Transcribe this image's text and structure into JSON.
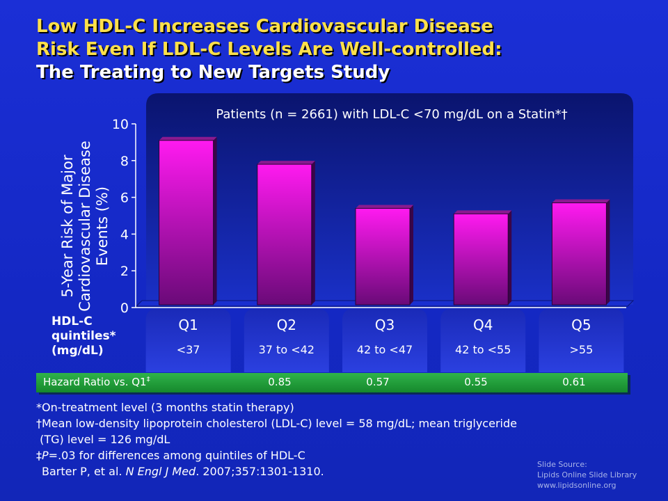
{
  "title": {
    "line1": "Low HDL-C Increases Cardiovascular Disease",
    "line2": "Risk Even If LDL-C Levels Are Well-controlled:",
    "line3": "The Treating to New Targets Study"
  },
  "chart_data": {
    "type": "bar",
    "subtitle": "Patients (n = 2661) with LDL-C <70 mg/dL on  a Statin*†",
    "ylabel": "5-Year Risk of Major Cardiovascular Disease Events (%)",
    "ylabel_lines": [
      "5-Year Risk of Major",
      "Cardiovascular Disease",
      "Events (%)"
    ],
    "ylim": [
      0,
      10
    ],
    "yticks": [
      0,
      2,
      4,
      6,
      8,
      10
    ],
    "categories": [
      "Q1",
      "Q2",
      "Q3",
      "Q4",
      "Q5"
    ],
    "ranges": [
      "<37",
      "37 to <42",
      "42 to <47",
      "42 to <55",
      ">55"
    ],
    "values": [
      9.1,
      7.8,
      5.4,
      5.1,
      5.7
    ],
    "xlabel_lines": [
      "HDL-C",
      "quintiles*",
      "(mg/dL)"
    ],
    "bar_color": "#ff1af0",
    "bar_color_dark": "#6a0a78",
    "grid": false
  },
  "hazard": {
    "label": "Hazard Ratio vs. Q1",
    "label_sup": "‡",
    "values": [
      "0.85",
      "0.57",
      "0.55",
      "0.61"
    ]
  },
  "footnotes": {
    "f1": "*On-treatment level (3 months statin therapy)",
    "f2": "†Mean low-density lipoprotein cholesterol (LDL-C) level = 58 mg/dL; mean triglyceride",
    "f3": " (TG) level = 126 mg/dL",
    "f4_a": "‡",
    "f4_p": "P",
    "f4_b": "=.03 for differences among quintiles of HDL-C",
    "ref_a": "Barter P, et al. ",
    "ref_journal": "N Engl J Med",
    "ref_b": ". 2007;357:1301-1310."
  },
  "source": {
    "l1": "Slide Source:",
    "l2": "Lipids Online Slide Library",
    "l3": "www.lipidsonline.org"
  }
}
